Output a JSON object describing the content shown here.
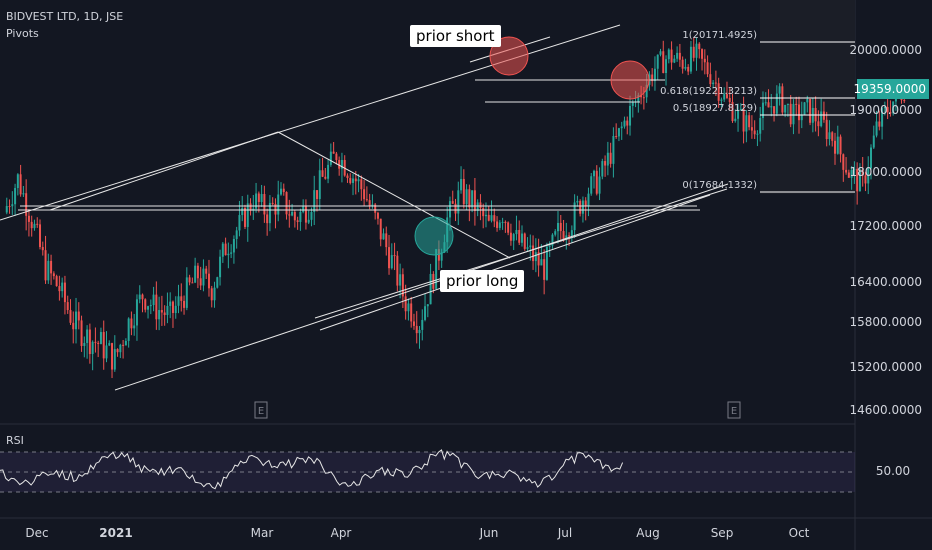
{
  "header": {
    "symbol": "BIDVEST LTD, 1D, JSE",
    "indicator": "Pivots"
  },
  "annotations": {
    "prior_short": "prior short",
    "prior_long": "prior long"
  },
  "rsi": {
    "label": "RSI",
    "value_label": "50.00"
  },
  "chart_data": {
    "type": "candlestick",
    "price_ticks": [
      "20000.0000",
      "19000.0000",
      "18000.0000",
      "17200.0000",
      "16400.0000",
      "15800.0000",
      "15200.0000",
      "14600.0000"
    ],
    "price_tick_values": [
      20000,
      19000,
      18000,
      17200,
      16400,
      15800,
      15200,
      14600
    ],
    "last_price": {
      "label": "19359.0000",
      "value": 19359,
      "color": "#26a69a"
    },
    "fib_levels": [
      {
        "label": "1(20171.4925)",
        "value": 20171.4925
      },
      {
        "label": "0.618(19221.3213)",
        "value": 19221.3213
      },
      {
        "label": "0.5(18927.8129)",
        "value": 18927.8129
      },
      {
        "label": "0(17684.1332)",
        "value": 17684.1332
      }
    ],
    "x_ticks": [
      {
        "label": "Dec",
        "bold": false
      },
      {
        "label": "2021",
        "bold": true
      },
      {
        "label": "Mar",
        "bold": false
      },
      {
        "label": "Apr",
        "bold": false
      },
      {
        "label": "Jun",
        "bold": false
      },
      {
        "label": "Jul",
        "bold": false
      },
      {
        "label": "Aug",
        "bold": false
      },
      {
        "label": "Sep",
        "bold": false
      },
      {
        "label": "Oct",
        "bold": false
      }
    ],
    "earnings_marker": "E",
    "colors": {
      "up": "#26a69a",
      "down": "#ef5350",
      "background": "#131722",
      "rsi_band": "#7e57c2"
    },
    "close_series": [
      [
        0,
        17400
      ],
      [
        5,
        17900
      ],
      [
        10,
        17300
      ],
      [
        15,
        16600
      ],
      [
        20,
        16300
      ],
      [
        25,
        15800
      ],
      [
        30,
        15600
      ],
      [
        35,
        15500
      ],
      [
        40,
        15300
      ],
      [
        45,
        15800
      ],
      [
        50,
        16200
      ],
      [
        55,
        16000
      ],
      [
        60,
        15900
      ],
      [
        65,
        16200
      ],
      [
        70,
        16500
      ],
      [
        75,
        16300
      ],
      [
        80,
        16900
      ],
      [
        85,
        17200
      ],
      [
        90,
        17600
      ],
      [
        95,
        17400
      ],
      [
        100,
        17600
      ],
      [
        105,
        17300
      ],
      [
        110,
        17500
      ],
      [
        115,
        17900
      ],
      [
        120,
        18300
      ],
      [
        125,
        18000
      ],
      [
        130,
        17700
      ],
      [
        135,
        17200
      ],
      [
        140,
        16700
      ],
      [
        145,
        16100
      ],
      [
        150,
        15800
      ],
      [
        155,
        16500
      ],
      [
        160,
        17300
      ],
      [
        165,
        17700
      ],
      [
        170,
        17500
      ],
      [
        175,
        17200
      ],
      [
        180,
        17400
      ],
      [
        185,
        17000
      ],
      [
        190,
        16800
      ],
      [
        195,
        16600
      ],
      [
        200,
        17100
      ],
      [
        205,
        17300
      ],
      [
        210,
        17700
      ],
      [
        215,
        17900
      ],
      [
        220,
        18400
      ],
      [
        225,
        18900
      ],
      [
        230,
        19300
      ],
      [
        235,
        19700
      ],
      [
        240,
        19900
      ],
      [
        245,
        19800
      ],
      [
        250,
        19900
      ],
      [
        255,
        19600
      ],
      [
        260,
        19200
      ],
      [
        265,
        18900
      ],
      [
        270,
        18700
      ],
      [
        275,
        19000
      ],
      [
        280,
        19200
      ],
      [
        285,
        18900
      ],
      [
        290,
        19000
      ],
      [
        295,
        18800
      ],
      [
        300,
        18500
      ],
      [
        305,
        18000
      ],
      [
        310,
        17800
      ],
      [
        315,
        18700
      ],
      [
        320,
        19100
      ],
      [
        325,
        19350
      ]
    ]
  }
}
